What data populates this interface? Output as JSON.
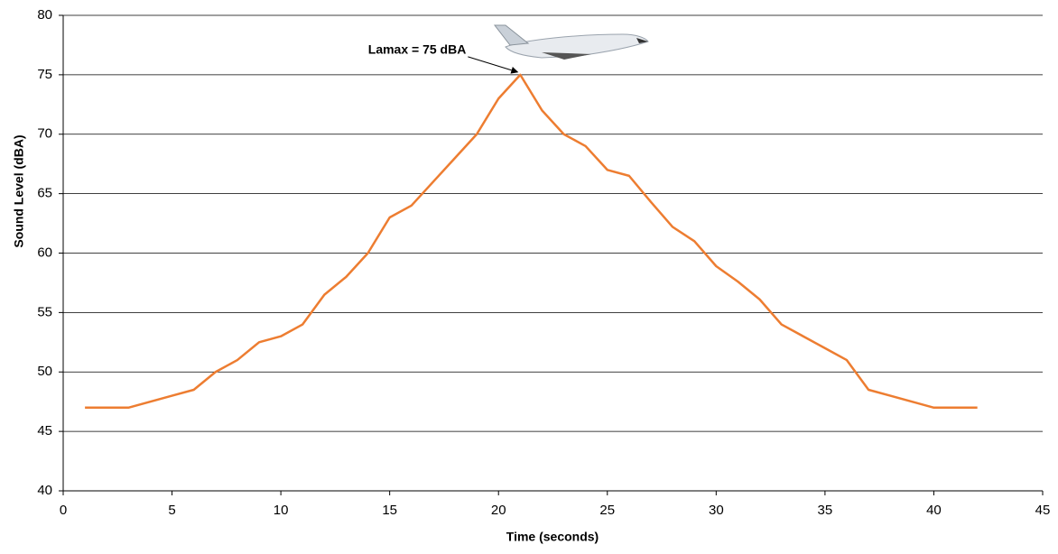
{
  "chart_data": {
    "type": "line",
    "x_label": "Time  (seconds)",
    "y_label": "Sound Level (dBA)",
    "x": [
      1,
      2,
      3,
      4,
      5,
      6,
      7,
      8,
      9,
      10,
      11,
      12,
      13,
      14,
      15,
      16,
      17,
      18,
      19,
      20,
      21,
      22,
      23,
      24,
      25,
      26,
      27,
      28,
      29,
      30,
      31,
      32,
      33,
      34,
      35,
      36,
      37,
      38,
      39,
      40,
      41,
      42
    ],
    "series": [
      {
        "color": "#ed7d31",
        "values": [
          47,
          47,
          47,
          47.5,
          48,
          48.5,
          50,
          51,
          52.5,
          53,
          54,
          56.5,
          58,
          60,
          63,
          64,
          66,
          68,
          70,
          73,
          75,
          72,
          70,
          69,
          67,
          66.5,
          64.3,
          62.2,
          61,
          58.9,
          57.6,
          56.1,
          54,
          53,
          52,
          51,
          48.5,
          48,
          47.5,
          47,
          47,
          47
        ]
      }
    ],
    "xlim": [
      0,
      45
    ],
    "xticks": [
      0,
      5,
      10,
      15,
      20,
      25,
      30,
      35,
      40,
      45
    ],
    "ylim": [
      40,
      80
    ],
    "yticks": [
      40,
      45,
      50,
      55,
      60,
      65,
      70,
      75,
      80
    ],
    "grid": true,
    "annotations": [
      {
        "text": "Lamax = 75 dBA"
      }
    ]
  }
}
